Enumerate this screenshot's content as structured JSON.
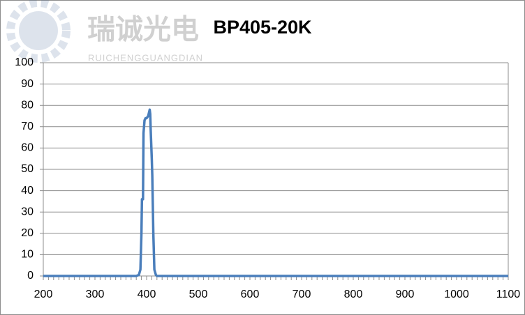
{
  "chart_data": {
    "type": "line",
    "title": "BP405-20K",
    "watermark": {
      "name": "瑞诚光电",
      "subtitle": "RUICHENGGUANGDIAN"
    },
    "x": [
      200,
      380,
      385,
      388,
      390,
      391,
      393,
      394,
      396,
      398,
      400,
      403,
      405,
      406,
      407,
      408,
      410,
      411,
      413,
      415,
      418,
      420,
      1100
    ],
    "series": [
      {
        "name": "BP405-20K",
        "color": "#4a7ebb",
        "values": [
          0,
          0,
          0.5,
          3,
          20,
          36,
          36,
          67,
          73,
          74,
          74,
          75,
          77,
          78,
          76,
          68,
          55,
          47,
          20,
          3,
          0.5,
          0,
          0
        ]
      }
    ],
    "xlim": [
      200,
      1100
    ],
    "xticks": [
      200,
      300,
      400,
      500,
      600,
      700,
      800,
      900,
      1000,
      1100
    ],
    "ylim": [
      0,
      100
    ],
    "yticks": [
      0,
      10,
      20,
      30,
      40,
      50,
      60,
      70,
      80,
      90,
      100
    ],
    "grid": true
  }
}
